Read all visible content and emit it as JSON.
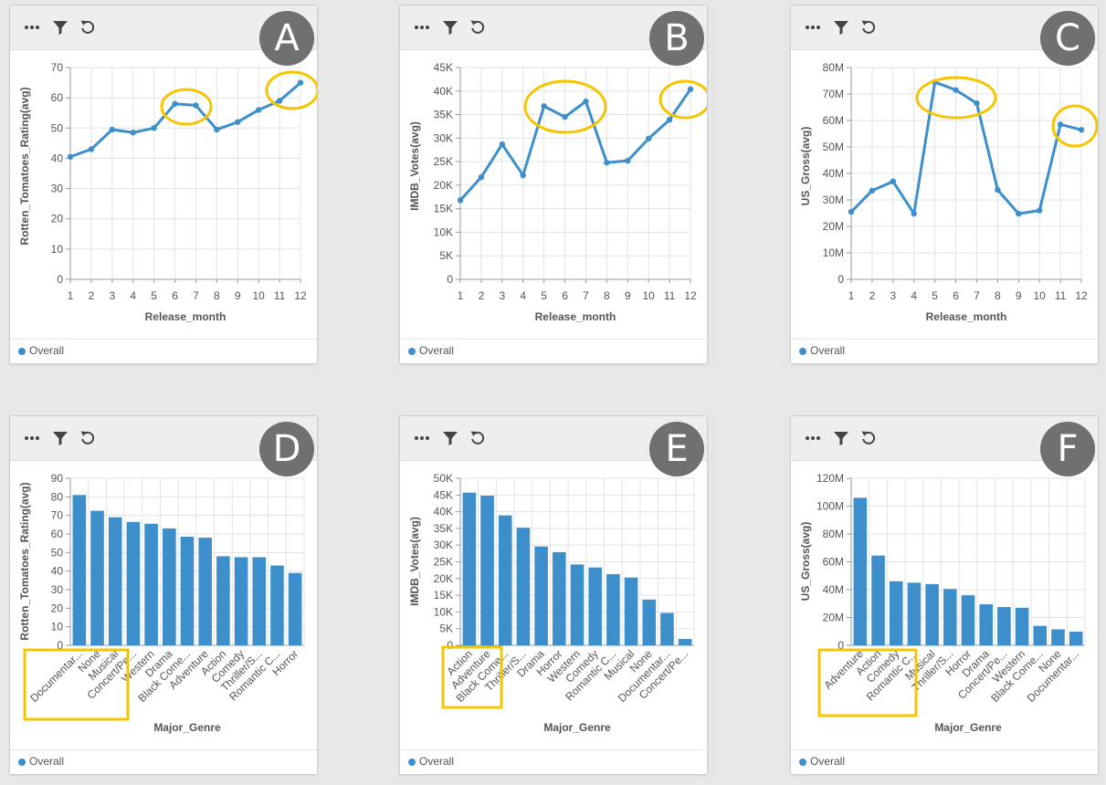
{
  "accent_color": "#3d8fcb",
  "highlight_color": "#f6c400",
  "toolbar_icons": [
    "more-icon",
    "filter-icon",
    "reset-icon"
  ],
  "chart_data": [
    {
      "type": "line",
      "badge": "A",
      "x": [
        1,
        2,
        3,
        4,
        5,
        6,
        7,
        8,
        9,
        10,
        11,
        12
      ],
      "xticks": [
        "1",
        "2",
        "3",
        "4",
        "5",
        "6",
        "7",
        "8",
        "9",
        "10",
        "11",
        "12"
      ],
      "yticks": [
        "0",
        "10",
        "20",
        "30",
        "40",
        "50",
        "60",
        "70"
      ],
      "ylim": [
        0,
        70
      ],
      "series": [
        {
          "name": "Overall",
          "values": [
            40.5,
            43,
            49.5,
            48.5,
            50,
            58,
            57.5,
            49.5,
            52,
            56,
            59,
            65
          ]
        }
      ],
      "xlabel": "Release_month",
      "ylabel": "Rotten_Tomatoes_Rating(avg)",
      "legend": "bottom-left",
      "grid": true
    },
    {
      "type": "line",
      "badge": "B",
      "x": [
        1,
        2,
        3,
        4,
        5,
        6,
        7,
        8,
        9,
        10,
        11,
        12
      ],
      "xticks": [
        "1",
        "2",
        "3",
        "4",
        "5",
        "6",
        "7",
        "8",
        "9",
        "10",
        "11",
        "12"
      ],
      "yticks": [
        "0",
        "5K",
        "10K",
        "15K",
        "20K",
        "25K",
        "30K",
        "35K",
        "40K",
        "45K"
      ],
      "ylim": [
        0,
        45000
      ],
      "series": [
        {
          "name": "Overall",
          "values": [
            16800,
            21700,
            28700,
            22100,
            36800,
            34500,
            37800,
            24800,
            25200,
            29900,
            33900,
            40400
          ]
        }
      ],
      "xlabel": "Release_month",
      "ylabel": "IMDB_Votes(avg)",
      "legend": "bottom-left",
      "grid": true
    },
    {
      "type": "line",
      "badge": "C",
      "x": [
        1,
        2,
        3,
        4,
        5,
        6,
        7,
        8,
        9,
        10,
        11,
        12
      ],
      "xticks": [
        "1",
        "2",
        "3",
        "4",
        "5",
        "6",
        "7",
        "8",
        "9",
        "10",
        "11",
        "12"
      ],
      "yticks": [
        "0",
        "10M",
        "20M",
        "30M",
        "40M",
        "50M",
        "60M",
        "70M",
        "80M"
      ],
      "ylim": [
        0,
        80000000
      ],
      "series": [
        {
          "name": "Overall",
          "values": [
            25500000,
            33500000,
            37000000,
            24800000,
            74500000,
            71500000,
            66500000,
            33800000,
            24800000,
            26000000,
            58500000,
            56500000
          ]
        }
      ],
      "xlabel": "Release_month",
      "ylabel": "US_Gross(avg)",
      "legend": "bottom-left",
      "grid": true
    },
    {
      "type": "bar",
      "badge": "D",
      "categories": [
        "Documentar...",
        "None",
        "Musical",
        "Concert/Pe...",
        "Western",
        "Drama",
        "Black Come...",
        "Adventure",
        "Action",
        "Comedy",
        "Thriller/S...",
        "Romantic C...",
        "Horror"
      ],
      "yticks": [
        "0",
        "10",
        "20",
        "30",
        "40",
        "50",
        "60",
        "70",
        "80",
        "90"
      ],
      "ylim": [
        0,
        90
      ],
      "series": [
        {
          "name": "Overall",
          "values": [
            81,
            72.5,
            69,
            66.5,
            65.5,
            63,
            58.5,
            58,
            48,
            47.5,
            47.5,
            43,
            39
          ]
        }
      ],
      "xlabel": "Major_Genre",
      "ylabel": "Rotten_Tomatoes_Rating(avg)",
      "legend": "bottom-left",
      "grid": true
    },
    {
      "type": "bar",
      "badge": "E",
      "categories": [
        "Action",
        "Adventure",
        "Black Come...",
        "Thriller/S...",
        "Drama",
        "Horror",
        "Western",
        "Comedy",
        "Romantic C...",
        "Musical",
        "None",
        "Documentar...",
        "Concert/Pe..."
      ],
      "yticks": [
        "0",
        "5K",
        "10K",
        "15K",
        "20K",
        "25K",
        "30K",
        "35K",
        "40K",
        "45K",
        "50K"
      ],
      "ylim": [
        0,
        50000
      ],
      "series": [
        {
          "name": "Overall",
          "values": [
            45700,
            44800,
            38900,
            35200,
            29600,
            27900,
            24200,
            23300,
            21300,
            20300,
            13700,
            9700,
            1900
          ]
        }
      ],
      "xlabel": "Major_Genre",
      "ylabel": "IMDB_Votes(avg)",
      "legend": "bottom-left",
      "grid": true
    },
    {
      "type": "bar",
      "badge": "F",
      "categories": [
        "Adventure",
        "Action",
        "Comedy",
        "Romantic C...",
        "Musical",
        "Thriller/S...",
        "Horror",
        "Drama",
        "Concert/Pe...",
        "Western",
        "Black Come...",
        "None",
        "Documentar..."
      ],
      "yticks": [
        "0",
        "20M",
        "40M",
        "60M",
        "80M",
        "100M",
        "120M"
      ],
      "ylim": [
        0,
        120000000
      ],
      "series": [
        {
          "name": "Overall",
          "values": [
            106000000,
            64500000,
            46000000,
            45000000,
            44000000,
            40500000,
            36000000,
            29500000,
            27500000,
            27000000,
            14000000,
            11500000,
            9800000
          ]
        }
      ],
      "xlabel": "Major_Genre",
      "ylabel": "US_Gross(avg)",
      "legend": "bottom-left",
      "grid": true
    }
  ]
}
